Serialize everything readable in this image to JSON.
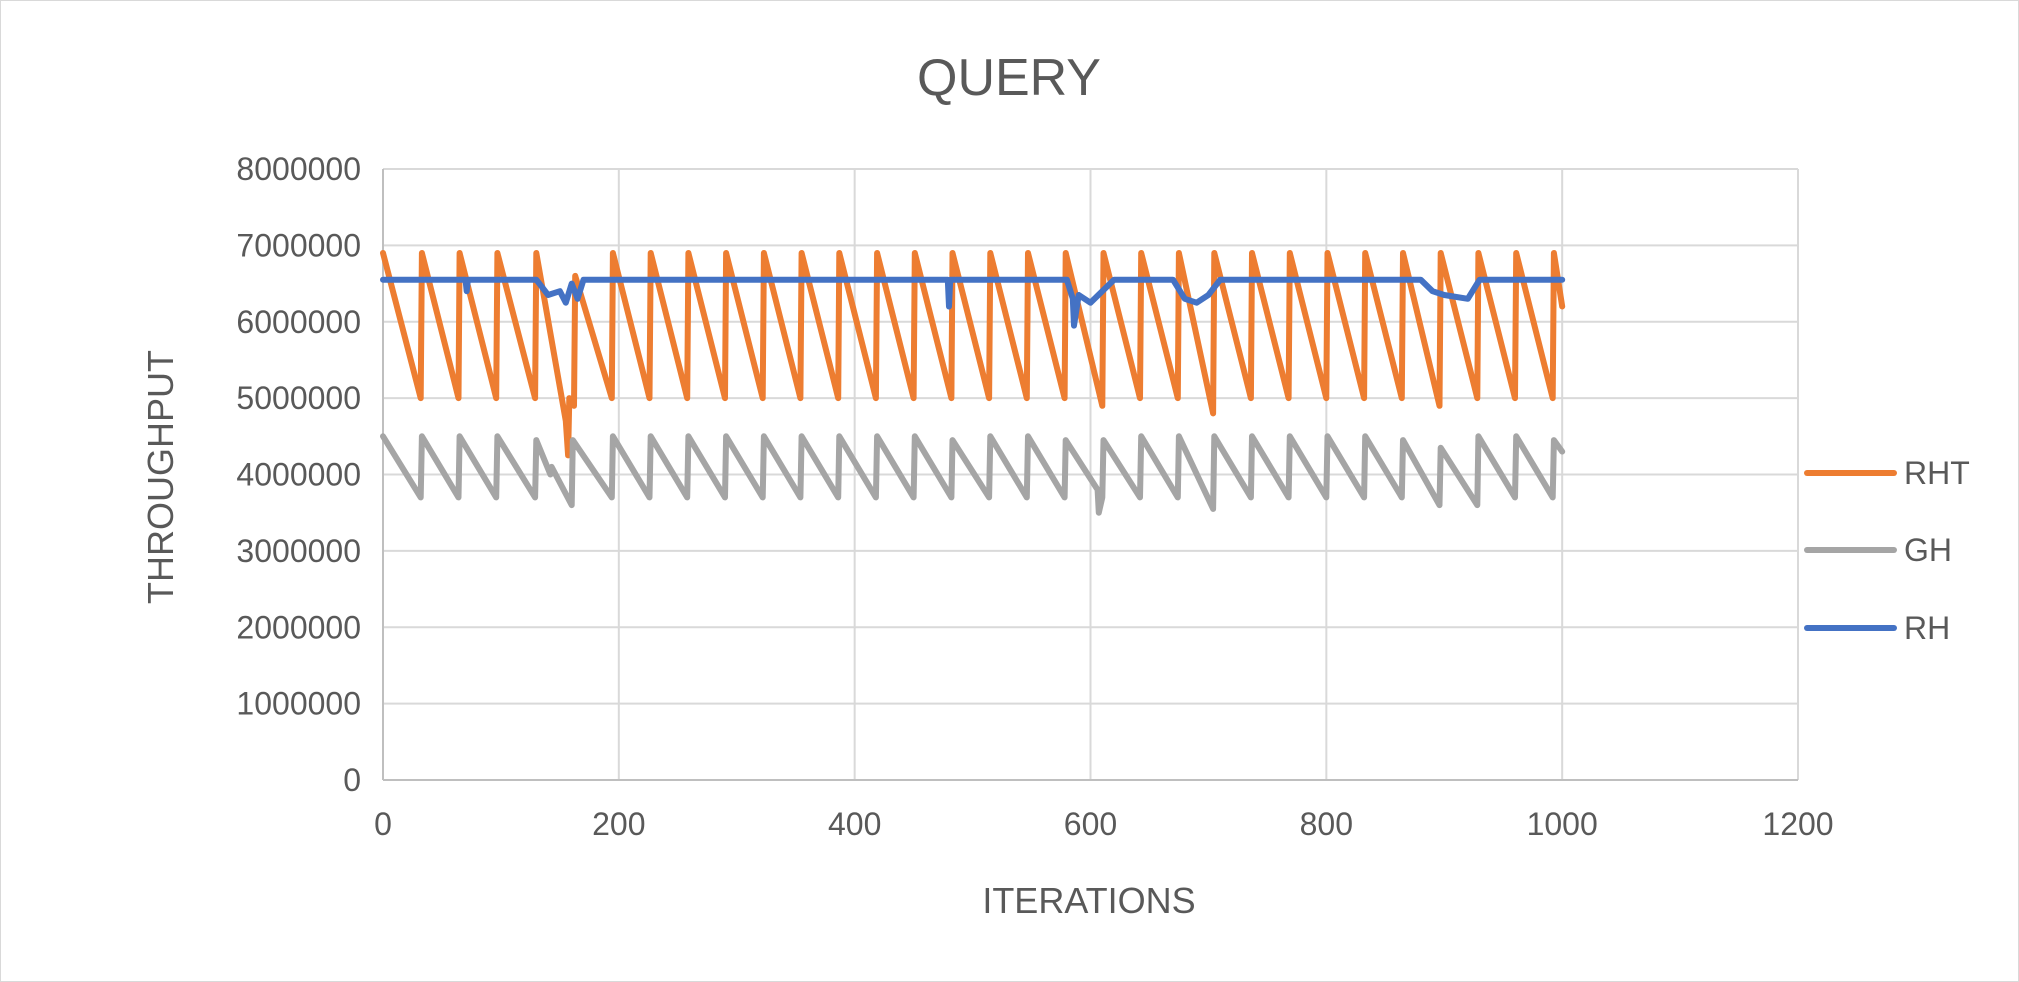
{
  "chart_data": {
    "type": "line",
    "title": "QUERY",
    "xlabel": "ITERATIONS",
    "ylabel": "THROUGHPUT",
    "xlim": [
      0,
      1200
    ],
    "ylim": [
      0,
      8000000
    ],
    "x_ticks": [
      0,
      200,
      400,
      600,
      800,
      1000,
      1200
    ],
    "y_ticks": [
      0,
      1000000,
      2000000,
      3000000,
      4000000,
      5000000,
      6000000,
      7000000,
      8000000
    ],
    "x_tick_labels": [
      "0",
      "200",
      "400",
      "600",
      "800",
      "1000",
      "1200"
    ],
    "y_tick_labels": [
      "0",
      "1000000",
      "2000000",
      "3000000",
      "4000000",
      "5000000",
      "6000000",
      "7000000",
      "8000000"
    ],
    "grid": true,
    "legend_position": "right",
    "series": [
      {
        "name": "RHT",
        "color": "#ED7D31",
        "x": [
          0,
          32,
          33,
          64,
          65,
          96,
          97,
          129,
          130,
          155,
          157,
          158,
          162,
          163,
          194,
          195,
          226,
          227,
          258,
          259,
          290,
          291,
          322,
          323,
          354,
          355,
          386,
          387,
          418,
          419,
          450,
          451,
          482,
          483,
          514,
          515,
          546,
          547,
          578,
          579,
          610,
          611,
          642,
          643,
          674,
          675,
          704,
          705,
          736,
          737,
          768,
          769,
          800,
          801,
          832,
          833,
          864,
          865,
          896,
          897,
          928,
          929,
          960,
          961,
          992,
          993,
          1000
        ],
        "y": [
          6900000,
          5000000,
          6900000,
          5000000,
          6900000,
          5000000,
          6900000,
          5000000,
          6900000,
          4700000,
          4250000,
          5000000,
          4900000,
          6600000,
          5000000,
          6900000,
          5000000,
          6900000,
          5000000,
          6900000,
          5000000,
          6900000,
          5000000,
          6900000,
          5000000,
          6900000,
          5000000,
          6900000,
          5000000,
          6900000,
          5000000,
          6900000,
          5000000,
          6900000,
          5000000,
          6900000,
          5000000,
          6900000,
          5000000,
          6900000,
          4900000,
          6900000,
          5000000,
          6900000,
          5000000,
          6900000,
          4800000,
          6900000,
          5000000,
          6900000,
          5000000,
          6900000,
          5000000,
          6900000,
          5000000,
          6900000,
          5000000,
          6900000,
          4900000,
          6900000,
          5000000,
          6900000,
          5000000,
          6900000,
          5000000,
          6900000,
          6200000
        ]
      },
      {
        "name": "GH",
        "color": "#A5A5A5",
        "x": [
          0,
          32,
          33,
          64,
          65,
          96,
          97,
          129,
          130,
          142,
          143,
          160,
          161,
          194,
          195,
          226,
          227,
          258,
          259,
          290,
          291,
          322,
          323,
          354,
          355,
          386,
          387,
          418,
          419,
          450,
          451,
          482,
          483,
          514,
          515,
          546,
          547,
          578,
          579,
          606,
          607,
          610,
          611,
          642,
          643,
          674,
          675,
          704,
          705,
          736,
          737,
          768,
          769,
          800,
          801,
          832,
          833,
          864,
          865,
          896,
          897,
          928,
          929,
          960,
          961,
          992,
          993,
          1000
        ],
        "y": [
          4500000,
          3700000,
          4500000,
          3700000,
          4500000,
          3700000,
          4500000,
          3700000,
          4450000,
          4000000,
          4100000,
          3600000,
          4450000,
          3700000,
          4500000,
          3700000,
          4500000,
          3700000,
          4500000,
          3700000,
          4500000,
          3700000,
          4500000,
          3700000,
          4500000,
          3700000,
          4500000,
          3700000,
          4500000,
          3700000,
          4500000,
          3700000,
          4450000,
          3700000,
          4500000,
          3700000,
          4500000,
          3700000,
          4450000,
          3800000,
          3500000,
          3700000,
          4450000,
          3700000,
          4500000,
          3700000,
          4500000,
          3550000,
          4500000,
          3700000,
          4500000,
          3700000,
          4500000,
          3700000,
          4500000,
          3700000,
          4500000,
          3700000,
          4450000,
          3600000,
          4350000,
          3600000,
          4500000,
          3700000,
          4500000,
          3700000,
          4450000,
          4300000
        ]
      },
      {
        "name": "RH",
        "color": "#4472C4",
        "x": [
          0,
          70,
          71,
          72,
          130,
          140,
          150,
          155,
          160,
          165,
          170,
          240,
          320,
          400,
          479,
          480,
          481,
          580,
          585,
          586,
          590,
          600,
          610,
          620,
          670,
          680,
          690,
          700,
          710,
          800,
          880,
          890,
          900,
          920,
          930,
          1000
        ],
        "y": [
          6550000,
          6550000,
          6400000,
          6550000,
          6550000,
          6350000,
          6400000,
          6250000,
          6500000,
          6300000,
          6550000,
          6550000,
          6550000,
          6550000,
          6550000,
          6200000,
          6550000,
          6550000,
          6300000,
          5950000,
          6350000,
          6250000,
          6400000,
          6550000,
          6550000,
          6300000,
          6250000,
          6350000,
          6550000,
          6550000,
          6550000,
          6400000,
          6350000,
          6300000,
          6550000,
          6550000
        ]
      }
    ]
  }
}
